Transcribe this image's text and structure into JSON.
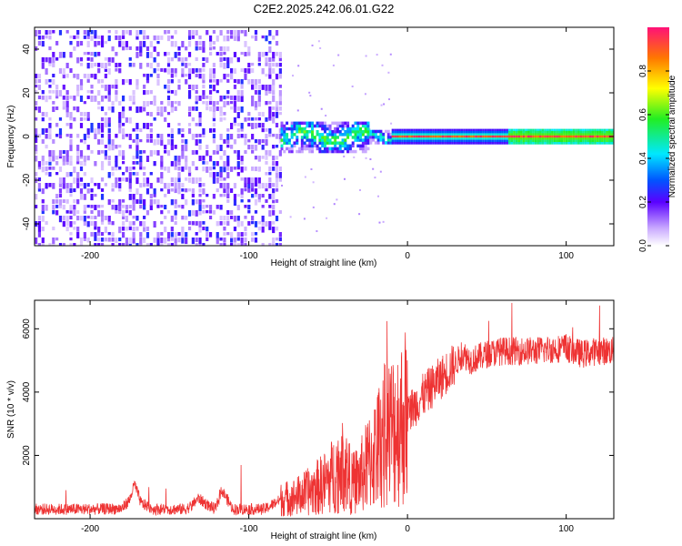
{
  "title": "C2E2.2025.242.06.01.G22",
  "chart_data": [
    {
      "type": "heatmap",
      "xlabel": "Height of straight line (km)",
      "ylabel": "Frequency (Hz)",
      "xlim": [
        -235,
        130
      ],
      "ylim": [
        -50,
        50
      ],
      "xticks": [
        -200,
        -100,
        0,
        100
      ],
      "xtick_labels": [
        "-200",
        "-100",
        "0",
        "100"
      ],
      "yticks": [
        -40,
        -20,
        0,
        20,
        40
      ],
      "ytick_labels": [
        "-40",
        "-20",
        "0",
        "20",
        "40"
      ],
      "colorbar": {
        "label": "Normalized spectral amplitude",
        "range": [
          0,
          1
        ],
        "ticks": [
          0.0,
          0.2,
          0.4,
          0.6,
          0.8
        ],
        "tick_labels": [
          "0.0",
          "0.2",
          "0.4",
          "0.6",
          "0.8"
        ]
      },
      "noise_region_x": [
        -235,
        -80
      ],
      "carrier_x_start": -10,
      "carrier_frequency_hz": 0
    },
    {
      "type": "line",
      "xlabel": "Height of straight line (km)",
      "ylabel": "SNR (10 * v/v)",
      "xlim": [
        -235,
        130
      ],
      "ylim": [
        0,
        6900
      ],
      "xticks": [
        -200,
        -100,
        0,
        100
      ],
      "xtick_labels": [
        "-200",
        "-100",
        "0",
        "100"
      ],
      "yticks": [
        2000,
        4000,
        6000
      ],
      "ytick_labels": [
        "2000",
        "4000",
        "6000"
      ],
      "line_color": "#ee3333",
      "series": [
        {
          "name": "SNR",
          "x": [
            -235,
            -200,
            -180,
            -175,
            -172,
            -168,
            -160,
            -140,
            -136,
            -132,
            -125,
            -121,
            -117,
            -110,
            -90,
            -80,
            -70,
            -60,
            -50,
            -45,
            -40,
            -35,
            -30,
            -25,
            -20,
            -15,
            -10,
            -5,
            0,
            10,
            20,
            30,
            35,
            40,
            50,
            60,
            80,
            100,
            110,
            120,
            130
          ],
          "y": [
            300,
            300,
            320,
            600,
            1100,
            500,
            300,
            300,
            400,
            650,
            400,
            300,
            900,
            300,
            300,
            600,
            700,
            900,
            1200,
            1500,
            1700,
            1100,
            1300,
            1700,
            2100,
            2600,
            2800,
            3000,
            3300,
            3900,
            4400,
            4900,
            5200,
            5000,
            5200,
            5300,
            5300,
            5400,
            5200,
            5300,
            5300
          ]
        }
      ]
    }
  ]
}
